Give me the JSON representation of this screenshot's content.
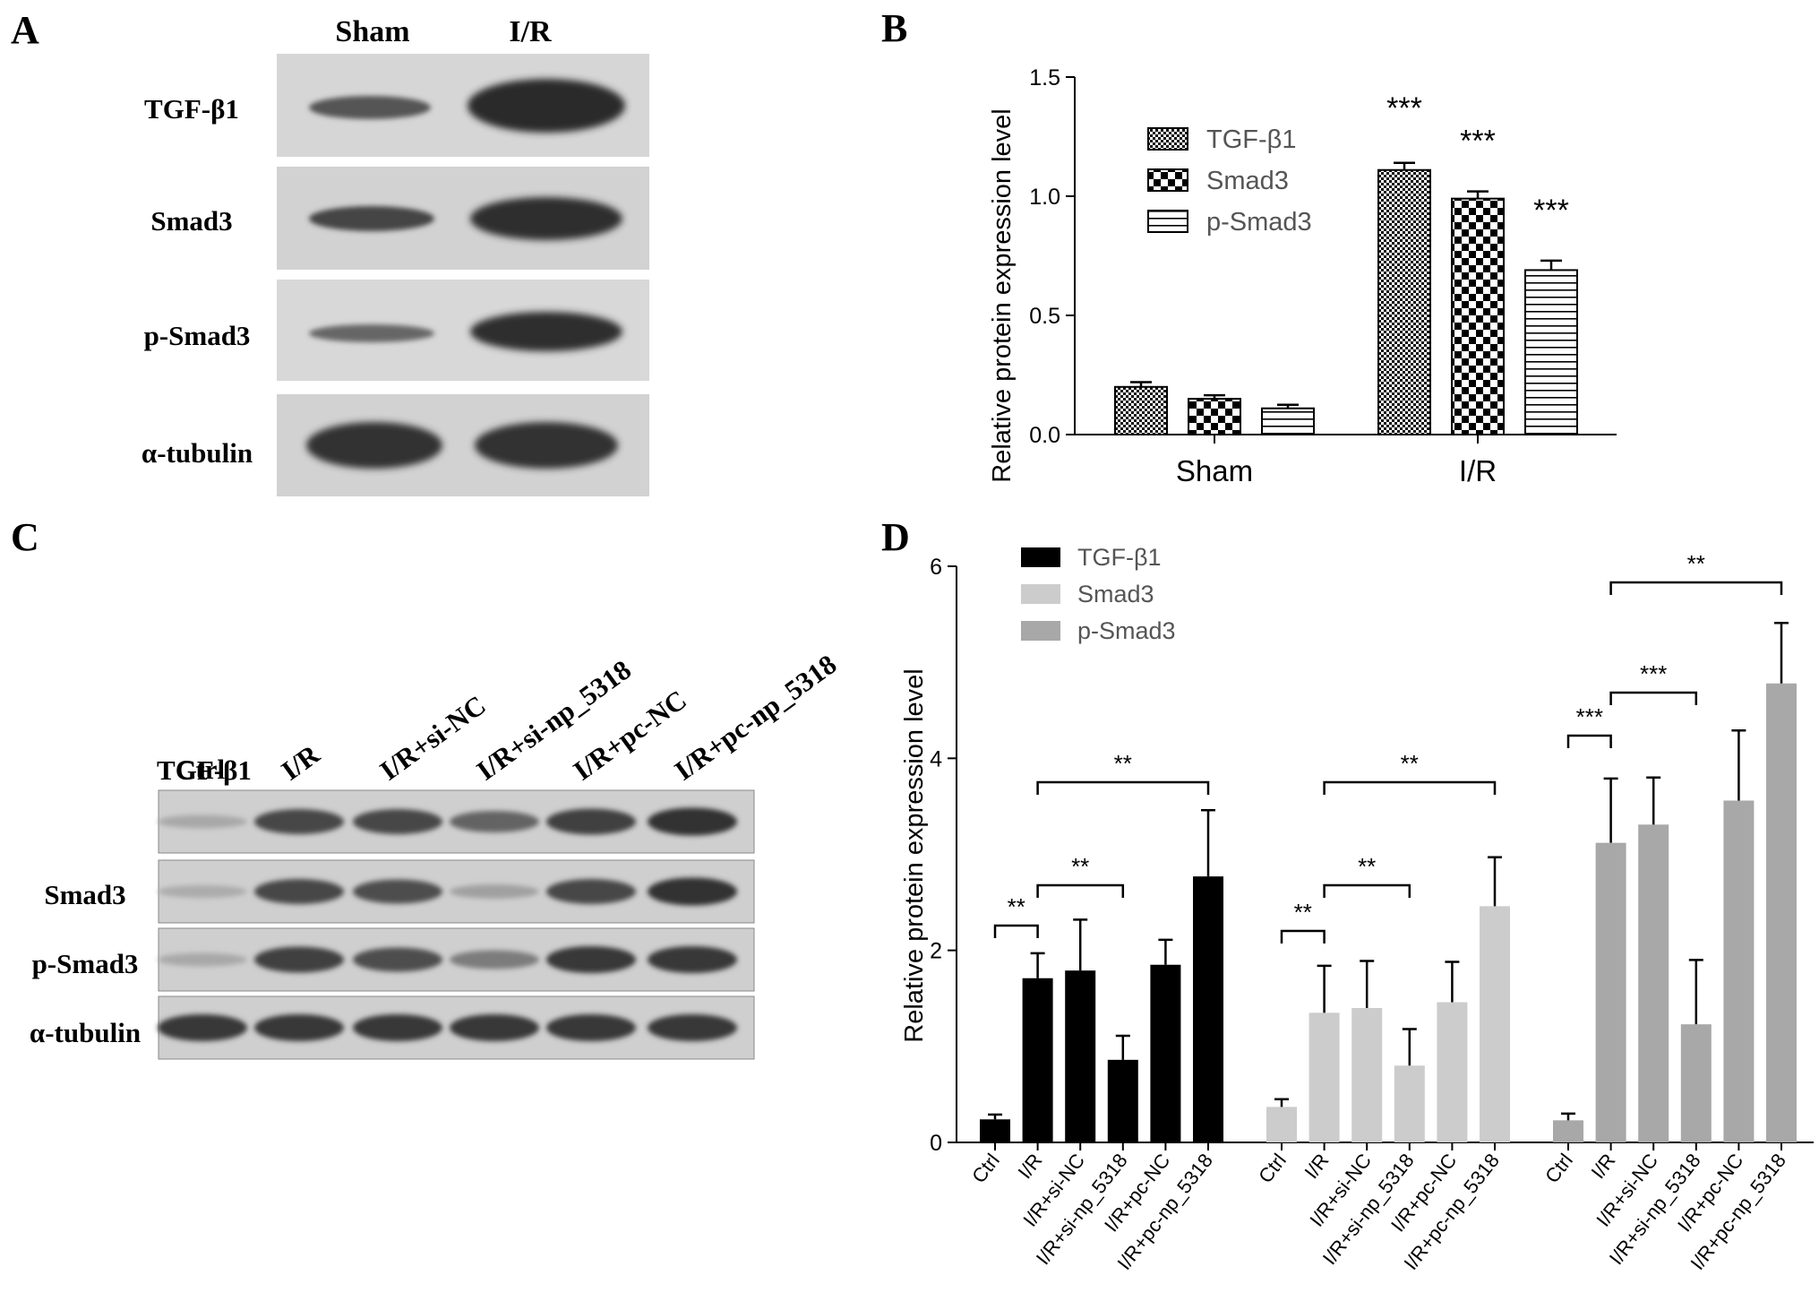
{
  "panels": {
    "A": {
      "letter": "A",
      "lanes": [
        "Sham",
        "I/R"
      ],
      "rows": [
        "TGF-β1",
        "Smad3",
        "p-Smad3",
        "α-tubulin"
      ]
    },
    "C": {
      "letter": "C",
      "lanes": [
        "Ctrl",
        "I/R",
        "I/R+si-NC",
        "I/R+si-np_5318",
        "I/R+pc-NC",
        "I/R+pc-np_5318"
      ],
      "rows": [
        "TGF-β1",
        "Smad3",
        "p-Smad3",
        "α-tubulin"
      ]
    }
  },
  "chart_data": [
    {
      "panel": "B",
      "type": "bar",
      "letter": "B",
      "ylabel": "Relative protein expression level",
      "ylim": [
        0,
        1.5
      ],
      "yticks": [
        "0.0",
        "0.5",
        "1.0",
        "1.5"
      ],
      "categories": [
        "Sham",
        "I/R"
      ],
      "legend_position": "top-left",
      "series": [
        {
          "name": "TGF-β1",
          "values": [
            0.2,
            1.11
          ],
          "errors": [
            0.02,
            0.03
          ],
          "pattern": "checker-fine"
        },
        {
          "name": "Smad3",
          "values": [
            0.15,
            0.99
          ],
          "errors": [
            0.015,
            0.03
          ],
          "pattern": "checker-coarse"
        },
        {
          "name": "p-Smad3",
          "values": [
            0.11,
            0.69
          ],
          "errors": [
            0.015,
            0.04
          ],
          "pattern": "horizontal-lines"
        }
      ],
      "annotations": [
        "***",
        "***",
        "***"
      ]
    },
    {
      "panel": "D",
      "type": "bar",
      "letter": "D",
      "ylabel": "Relative protein expression level",
      "ylim": [
        0,
        6
      ],
      "yticks": [
        "0",
        "2",
        "4",
        "6"
      ],
      "categories": [
        "Ctrl",
        "I/R",
        "I/R+si-NC",
        "I/R+si-np_5318",
        "I/R+pc-NC",
        "I/R+pc-np_5318"
      ],
      "legend_position": "top-left",
      "colors": {
        "TGF-β1": "#000000",
        "Smad3": "#cccccc",
        "p-Smad3": "#a8a8a8"
      },
      "series": [
        {
          "name": "TGF-β1",
          "values": [
            0.24,
            1.71,
            1.79,
            0.86,
            1.85,
            2.77
          ],
          "errors": [
            0.05,
            0.26,
            0.53,
            0.25,
            0.26,
            0.69
          ]
        },
        {
          "name": "Smad3",
          "values": [
            0.37,
            1.35,
            1.4,
            0.8,
            1.46,
            2.46
          ],
          "errors": [
            0.08,
            0.49,
            0.49,
            0.38,
            0.42,
            0.51
          ]
        },
        {
          "name": "p-Smad3",
          "values": [
            0.23,
            3.12,
            3.31,
            1.23,
            3.56,
            4.78
          ],
          "errors": [
            0.07,
            0.67,
            0.49,
            0.67,
            0.73,
            0.63
          ]
        }
      ],
      "brackets": [
        {
          "series": "TGF-β1",
          "from": 0,
          "to": 1,
          "label": "**"
        },
        {
          "series": "TGF-β1",
          "from": 1,
          "to": 3,
          "label": "**"
        },
        {
          "series": "TGF-β1",
          "from": 1,
          "to": 5,
          "label": "**"
        },
        {
          "series": "Smad3",
          "from": 0,
          "to": 1,
          "label": "**"
        },
        {
          "series": "Smad3",
          "from": 1,
          "to": 3,
          "label": "**"
        },
        {
          "series": "Smad3",
          "from": 1,
          "to": 5,
          "label": "**"
        },
        {
          "series": "p-Smad3",
          "from": 0,
          "to": 1,
          "label": "***"
        },
        {
          "series": "p-Smad3",
          "from": 1,
          "to": 3,
          "label": "***"
        },
        {
          "series": "p-Smad3",
          "from": 1,
          "to": 5,
          "label": "**"
        }
      ]
    }
  ]
}
